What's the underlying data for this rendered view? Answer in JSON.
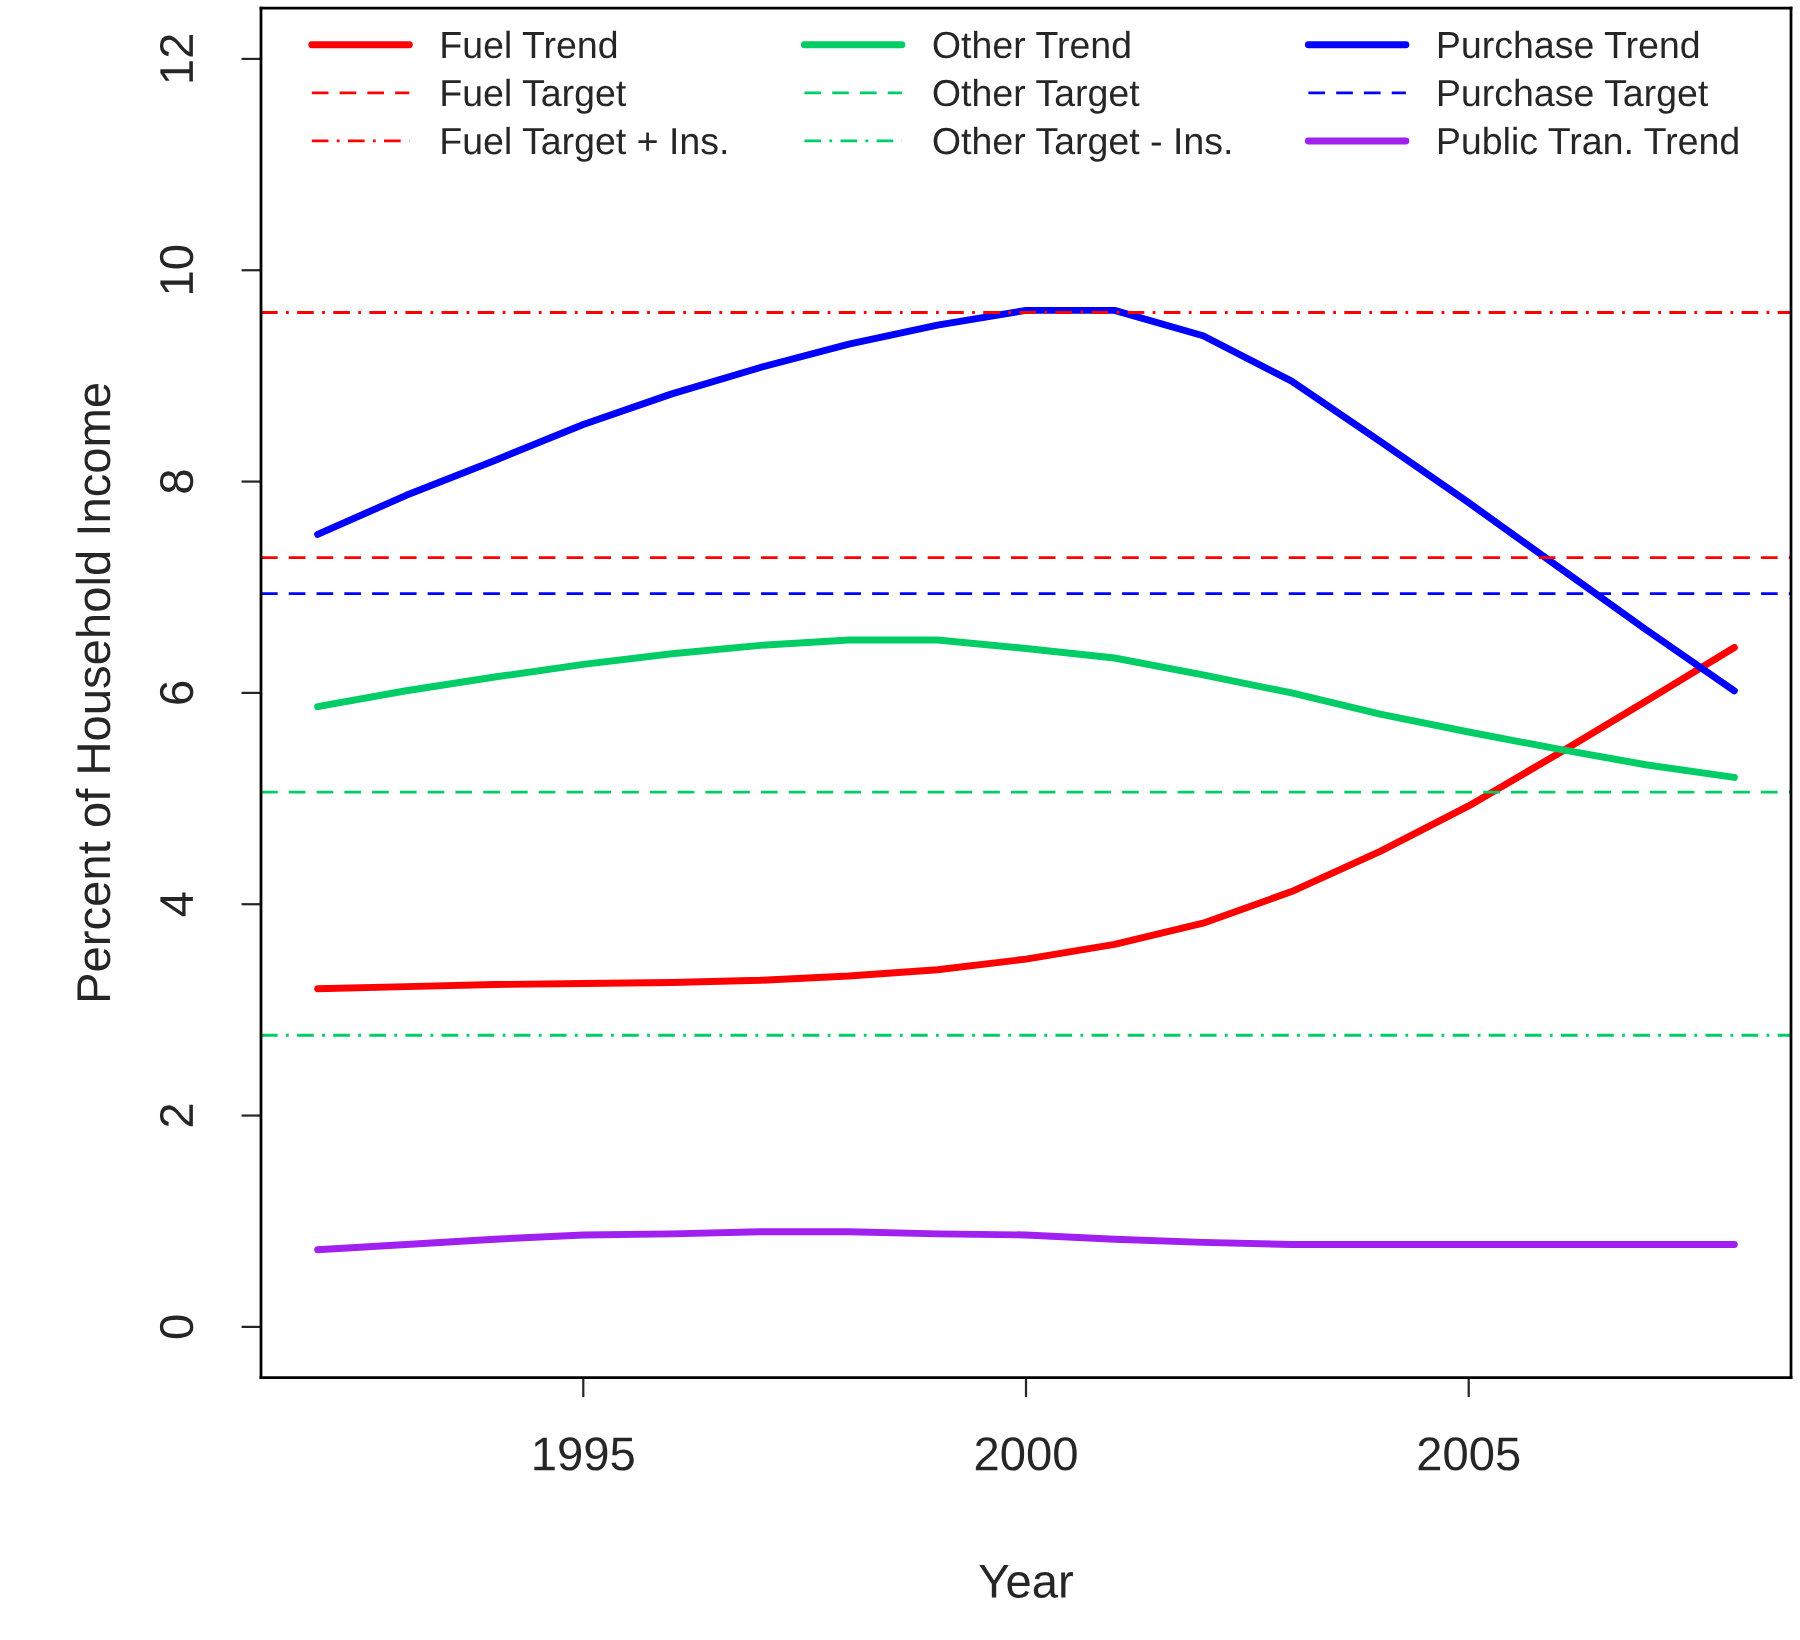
{
  "chart_data": {
    "type": "line",
    "xlabel": "Year",
    "ylabel": "Percent of Household Income",
    "x": [
      1992,
      1993,
      1994,
      1995,
      1996,
      1997,
      1998,
      1999,
      2000,
      2001,
      2002,
      2003,
      2004,
      2005,
      2006,
      2007,
      2008
    ],
    "series": [
      {
        "name": "Fuel Trend",
        "color": "#ff0000",
        "values": [
          3.2,
          3.22,
          3.24,
          3.25,
          3.26,
          3.28,
          3.32,
          3.38,
          3.48,
          3.62,
          3.82,
          4.12,
          4.5,
          4.93,
          5.42,
          5.92,
          6.43
        ]
      },
      {
        "name": "Other Trend",
        "color": "#00cd66",
        "values": [
          5.87,
          6.02,
          6.15,
          6.27,
          6.37,
          6.45,
          6.5,
          6.5,
          6.42,
          6.33,
          6.17,
          6.0,
          5.8,
          5.63,
          5.47,
          5.32,
          5.2
        ]
      },
      {
        "name": "Purchase Trend",
        "color": "#0000ff",
        "values": [
          7.5,
          7.87,
          8.2,
          8.54,
          8.83,
          9.08,
          9.3,
          9.48,
          9.62,
          9.62,
          9.38,
          8.95,
          8.38,
          7.8,
          7.2,
          6.6,
          6.02
        ]
      },
      {
        "name": "Public Tran. Trend",
        "color": "#a020f0",
        "values": [
          0.73,
          0.78,
          0.83,
          0.87,
          0.88,
          0.9,
          0.9,
          0.88,
          0.87,
          0.83,
          0.8,
          0.78,
          0.78,
          0.78,
          0.78,
          0.78,
          0.78
        ]
      }
    ],
    "ref_lines": [
      {
        "axis": "y",
        "value": 7.28,
        "label": "Fuel Target",
        "color": "#ff0000",
        "line_style": "dashed"
      },
      {
        "axis": "y",
        "value": 9.6,
        "label": "Fuel Target + Ins.",
        "color": "#ff0000",
        "line_style": "dashdot"
      },
      {
        "axis": "y",
        "value": 5.06,
        "label": "Other Target",
        "color": "#00cd66",
        "line_style": "dashed"
      },
      {
        "axis": "y",
        "value": 2.76,
        "label": "Other Target - Ins.",
        "color": "#00cd66",
        "line_style": "dashdot"
      },
      {
        "axis": "y",
        "value": 6.94,
        "label": "Purchase Target",
        "color": "#0000ff",
        "line_style": "dashed"
      }
    ],
    "xlim": [
      1991.36,
      2008.64
    ],
    "ylim": [
      -0.48,
      12.48
    ],
    "xticks": [
      1995,
      2000,
      2005
    ],
    "yticks": [
      0,
      2,
      4,
      6,
      8,
      10,
      12
    ],
    "grid": false,
    "legend": "top",
    "line_style": "solid",
    "marker": "none"
  }
}
